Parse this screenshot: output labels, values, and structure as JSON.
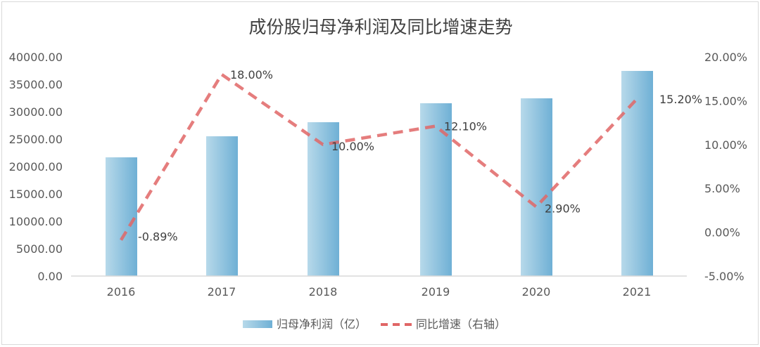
{
  "chart_data": {
    "type": "bar+line",
    "title": "成份股归母净利润及同比增速走势",
    "categories": [
      "2016",
      "2017",
      "2018",
      "2019",
      "2020",
      "2021"
    ],
    "series": [
      {
        "name": "归母净利润（亿）",
        "type": "bar",
        "axis": "left",
        "values": [
          21670,
          25510,
          28080,
          31540,
          32440,
          37440
        ],
        "color": "#7ab8d9"
      },
      {
        "name": "同比增速（右轴）",
        "type": "line",
        "axis": "right",
        "style": "dashed",
        "values": [
          -0.89,
          18.0,
          10.0,
          12.1,
          2.9,
          15.2
        ],
        "labels": [
          "-0.89%",
          "18.00%",
          "10.00%",
          "12.10%",
          "2.90%",
          "15.20%"
        ],
        "color": "#e06666"
      }
    ],
    "left_axis": {
      "ylim": [
        0,
        40000
      ],
      "ticks": [
        "0.00",
        "5000.00",
        "10000.00",
        "15000.00",
        "20000.00",
        "25000.00",
        "30000.00",
        "35000.00",
        "40000.00"
      ]
    },
    "right_axis": {
      "ylim": [
        -5,
        20
      ],
      "ticks": [
        "-5.00%",
        "0.00%",
        "5.00%",
        "10.00%",
        "15.00%",
        "20.00%"
      ]
    },
    "grid": false,
    "legend": "bottom"
  }
}
